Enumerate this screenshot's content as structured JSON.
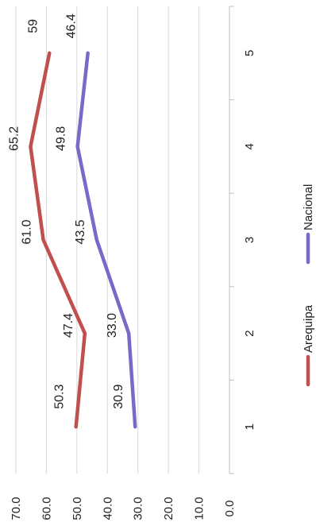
{
  "chart_data": {
    "type": "line",
    "title": "",
    "xlabel": "",
    "ylabel": "",
    "categories": [
      "1",
      "2",
      "3",
      "4",
      "5"
    ],
    "ylim": [
      0,
      70
    ],
    "yticks": [
      "0.0",
      "10.0",
      "20.0",
      "30.0",
      "40.0",
      "50.0",
      "60.0",
      "70.0"
    ],
    "grid": true,
    "legend_position": "right",
    "series": [
      {
        "name": "Arequipa",
        "color": "#c0504d",
        "values": [
          50.3,
          47.4,
          61.0,
          65.2,
          59
        ],
        "labels": [
          "50.3",
          "47.4",
          "61.0",
          "65.2",
          "59"
        ]
      },
      {
        "name": "Nacional",
        "color": "#7b68c8",
        "values": [
          30.9,
          33.0,
          43.5,
          49.8,
          46.4
        ],
        "labels": [
          "30.9",
          "33.0",
          "43.5",
          "49.8",
          "46.4"
        ]
      }
    ]
  }
}
